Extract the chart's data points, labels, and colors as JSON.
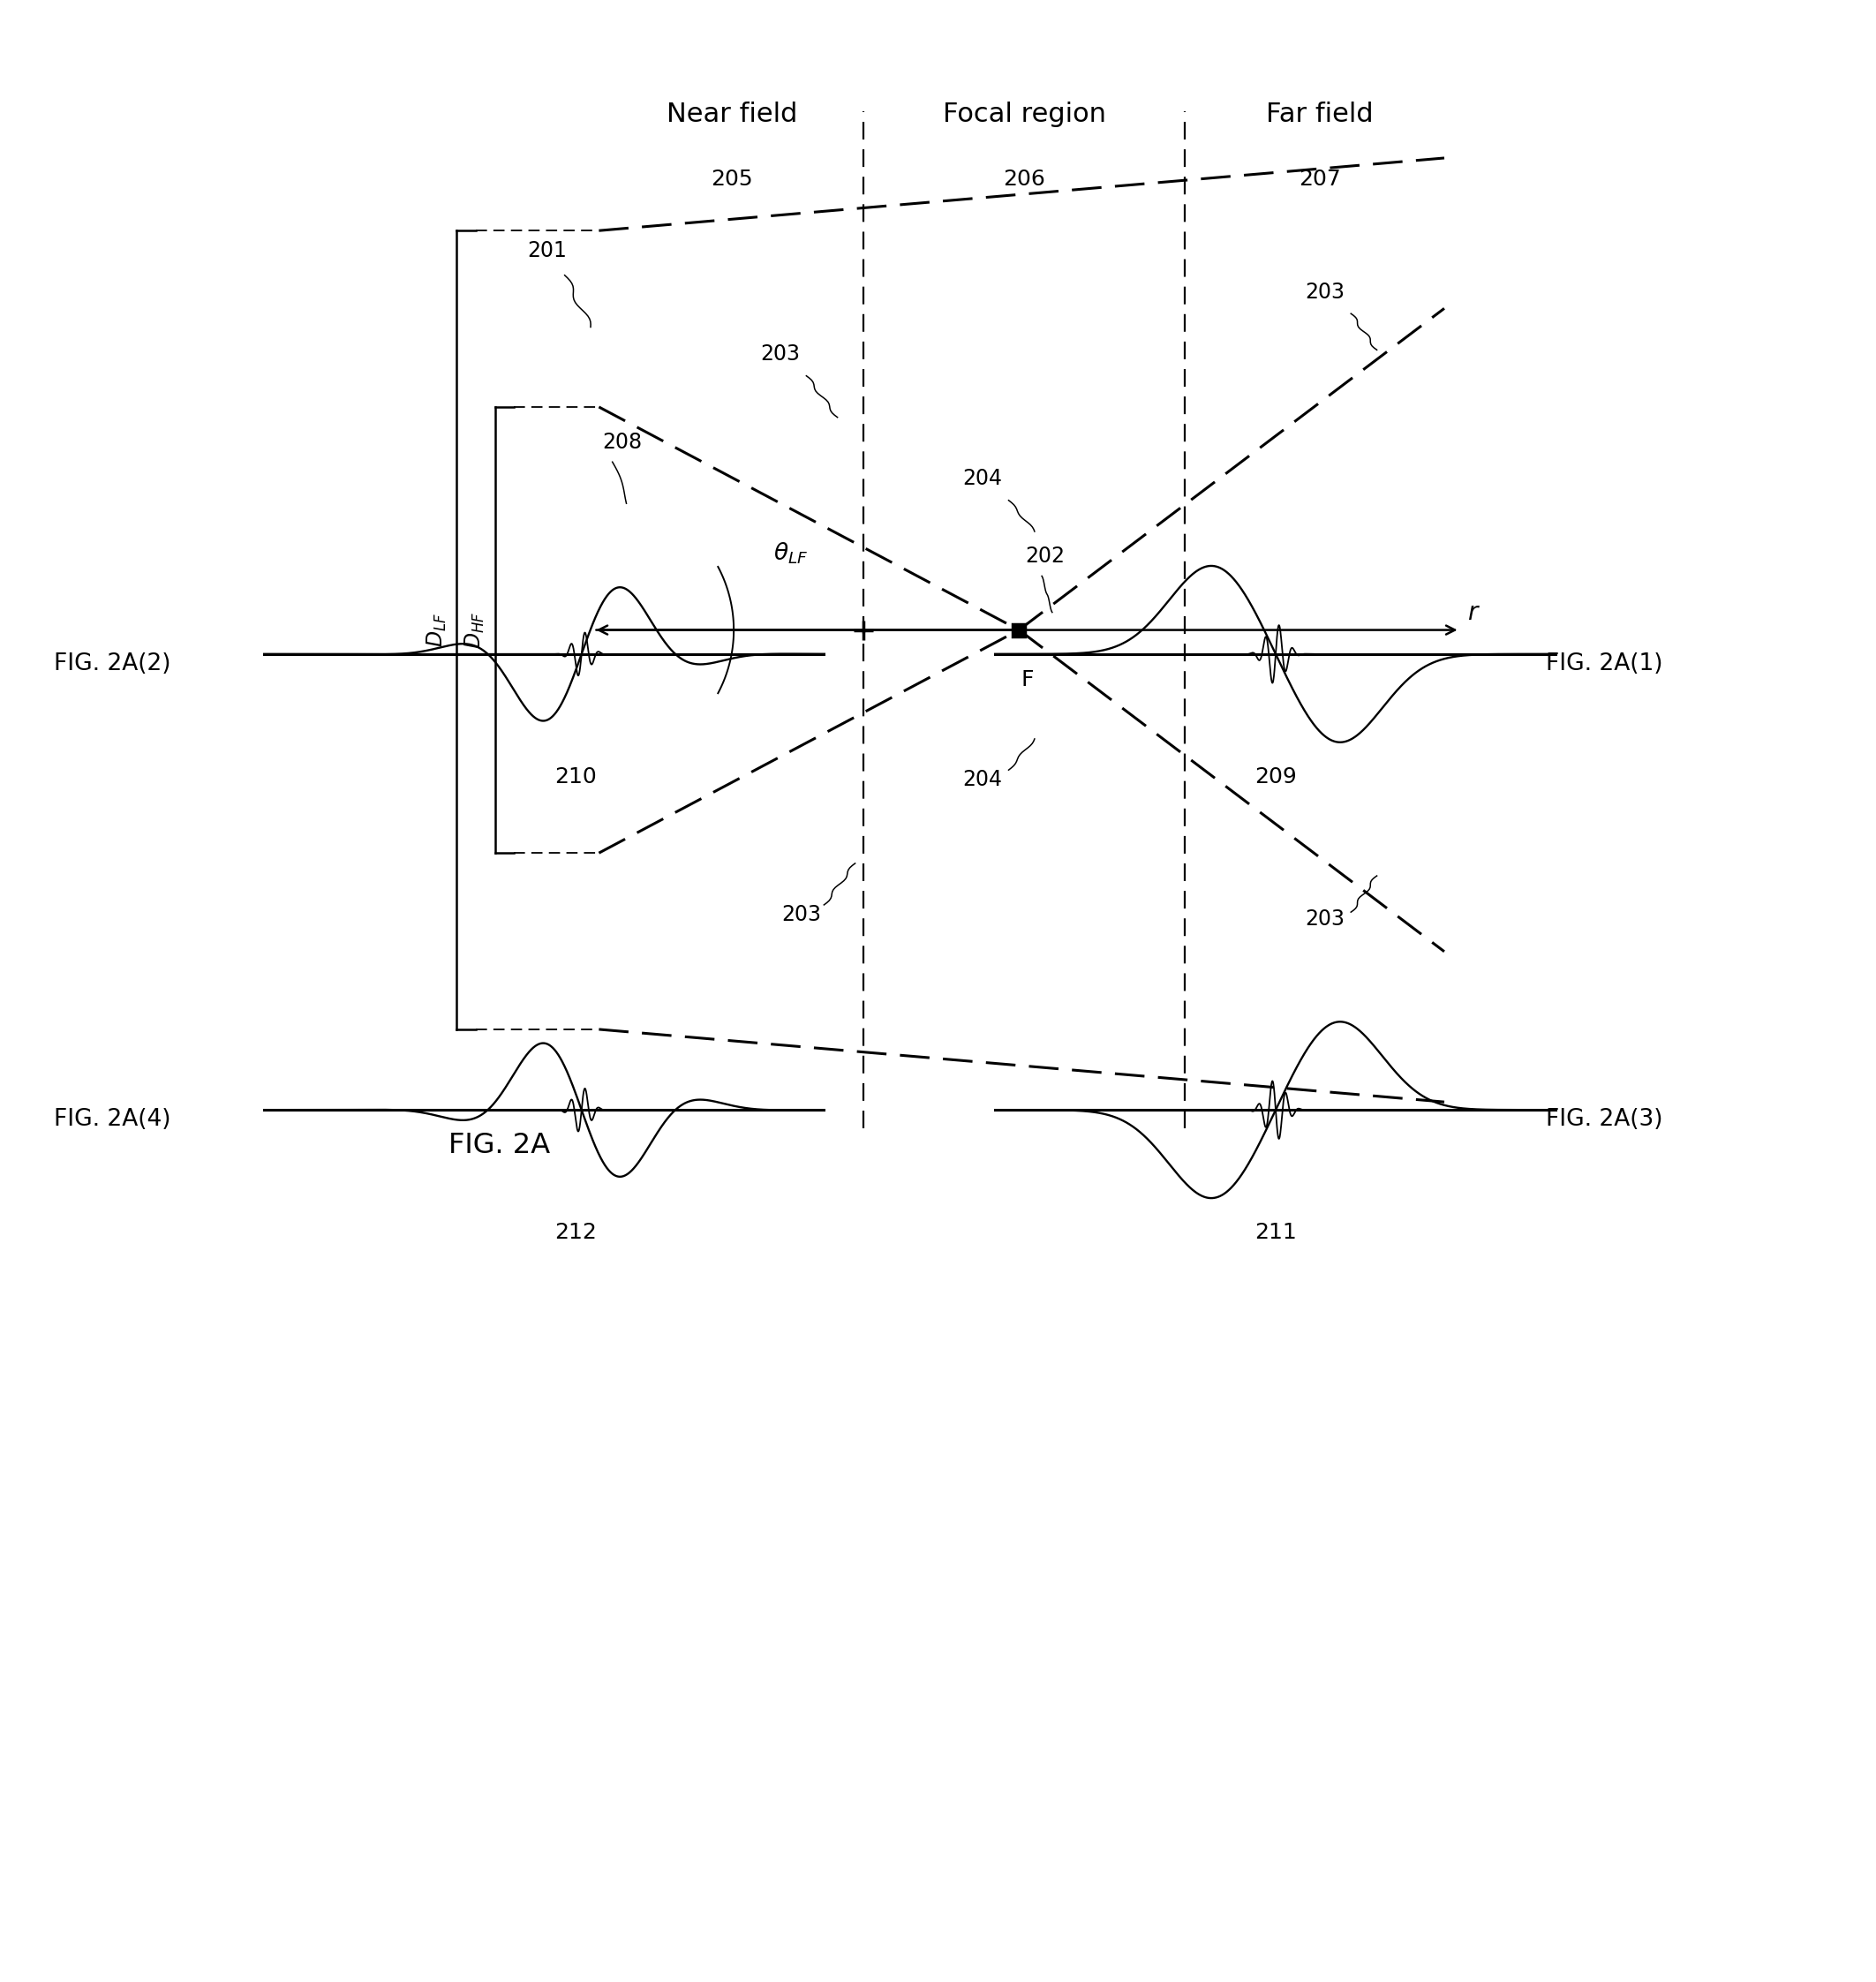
{
  "background_color": "#ffffff",
  "fig_width": 21.25,
  "fig_height": 22.45,
  "top": {
    "title_near": "Near field",
    "title_near_num": "205",
    "title_focal": "Focal region",
    "title_focal_num": "206",
    "title_far": "Far field",
    "title_far_num": "207",
    "label_r": "r",
    "label_F": "F",
    "label_201": "201",
    "label_202": "202",
    "label_203": "203",
    "label_204": "204",
    "label_208": "208",
    "fig_label": "FIG. 2A",
    "label_DLF": "D",
    "label_DHF": "D",
    "sub_LF": "LF",
    "sub_HF": "HF"
  }
}
